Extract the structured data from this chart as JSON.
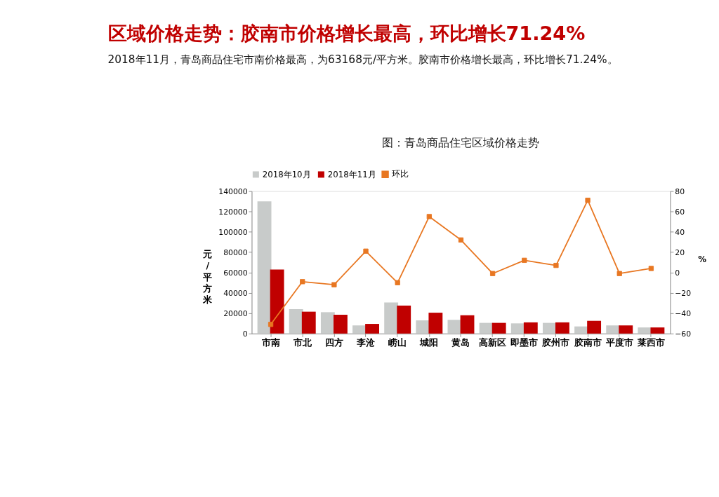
{
  "chart_data": {
    "type": "bar",
    "title": "区域价格走势：胶南市价格增长最高，环比增长71.24%",
    "subtitle": "2018年11月，青岛商品住宅市南价格最高，为63168元/平方米。胶南市价格增长最高，环比增长71.24%。",
    "annotations": [
      "图：青岛商品住宅区域价格走势"
    ],
    "categories": [
      "市南",
      "市北",
      "四方",
      "李沧",
      "崂山",
      "城阳",
      "黄岛",
      "高新区",
      "即墨市",
      "胶州市",
      "胶南市",
      "平度市",
      "莱西市"
    ],
    "ylabel": "元/平方米",
    "y2label": "%",
    "ylim": [
      0,
      140000
    ],
    "yticks": [
      0,
      20000,
      40000,
      60000,
      80000,
      100000,
      120000,
      140000
    ],
    "y2lim": [
      -60,
      80
    ],
    "y2ticks": [
      -60,
      -40,
      -20,
      0,
      20,
      40,
      60,
      80
    ],
    "grid": false,
    "legend": "top",
    "marker": "square",
    "line_style": "solid",
    "series": [
      {
        "name": "2018年10月",
        "color": "#c8cbca",
        "values": [
          130000,
          24000,
          21000,
          8000,
          30500,
          13000,
          13500,
          10500,
          10000,
          10500,
          7000,
          8000,
          6000
        ]
      },
      {
        "name": "2018年11月",
        "color": "#c00000",
        "values": [
          63000,
          21500,
          18500,
          9500,
          27500,
          20500,
          18000,
          10500,
          11000,
          11000,
          12500,
          8000,
          6000
        ]
      },
      {
        "name": "环比",
        "type": "line",
        "axis": "y2",
        "color": "#e87722",
        "values": [
          -51,
          -9,
          -12,
          21,
          -10,
          55,
          32,
          -1,
          12,
          7,
          71,
          -1,
          4
        ]
      }
    ]
  }
}
